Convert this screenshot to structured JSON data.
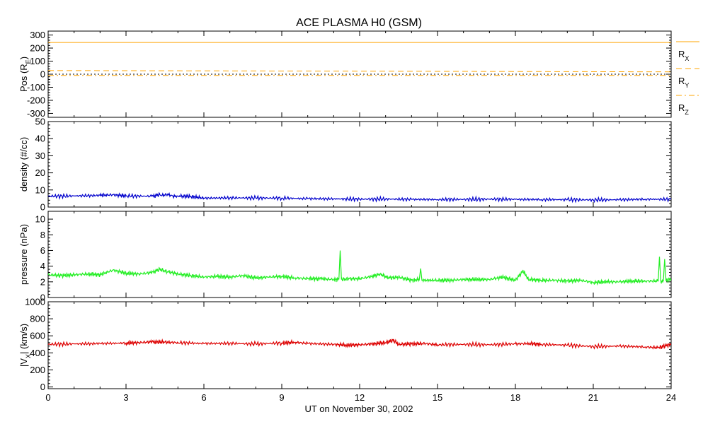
{
  "chart_data": {
    "type": "line",
    "title": "ACE PLASMA H0 (GSM)",
    "xlabel": "UT on November 30, 2002",
    "x_ticks": [
      0,
      3,
      6,
      9,
      12,
      15,
      18,
      21,
      24
    ],
    "xlim": [
      0,
      24
    ],
    "panels": [
      {
        "id": "position",
        "ylabel": "Pos (R",
        "ylabel_sub": "E",
        "ylabel_end": ")",
        "ylim": [
          -330,
          330
        ],
        "y_ticks": [
          300,
          200,
          100,
          0,
          -100,
          -200,
          -300
        ],
        "color": "#ffa500",
        "series": [
          {
            "name": "R",
            "sub": "X",
            "style": "solid",
            "color": "#ffa500",
            "x": [
              0,
              24
            ],
            "y": [
              243,
              243
            ]
          },
          {
            "name": "R",
            "sub": "Y",
            "style": "dashed",
            "color": "#ffa500",
            "x": [
              0,
              24
            ],
            "y": [
              28,
              18
            ]
          },
          {
            "name": "R",
            "sub": "Z",
            "style": "dashdot",
            "color": "#ffa500",
            "x": [
              0,
              24
            ],
            "y": [
              -9,
              -9
            ]
          },
          {
            "name": "",
            "sub": "",
            "style": "dotted",
            "color": "#000000",
            "x": [
              0,
              24
            ],
            "y": [
              0,
              0
            ]
          }
        ]
      },
      {
        "id": "density",
        "ylabel": "density (#/cc)",
        "ylim": [
          0,
          50
        ],
        "y_ticks": [
          0,
          10,
          20,
          30,
          40,
          50
        ],
        "color": "#0000cc",
        "series": [
          {
            "name": "density",
            "x": [
              0,
              1,
              2,
              2.5,
              3,
              4,
              4.3,
              5,
              5.5,
              6,
              7,
              8,
              9,
              10,
              11,
              12,
              13,
              14,
              15,
              16,
              17,
              18,
              19,
              20,
              21,
              22,
              23,
              24
            ],
            "y": [
              6.3,
              6.5,
              6.8,
              7.2,
              6.5,
              6.3,
              7.3,
              6.5,
              6.2,
              5.2,
              5.4,
              5.3,
              5.2,
              4.9,
              4.8,
              4.6,
              4.7,
              4.5,
              4.4,
              4.5,
              4.6,
              4.5,
              4.4,
              4.3,
              4.2,
              4.3,
              4.6,
              4.5
            ]
          }
        ]
      },
      {
        "id": "pressure",
        "ylabel": "pressure (nPa)",
        "ylim": [
          0,
          11
        ],
        "y_ticks": [
          0,
          2,
          4,
          6,
          8,
          10
        ],
        "color": "#22ee22",
        "series": [
          {
            "name": "pressure",
            "x": [
              0,
              0.5,
              1,
              1.5,
              2,
              2.5,
              3,
              3.5,
              4,
              4.3,
              4.6,
              5,
              5.5,
              6,
              6.5,
              7,
              7.5,
              8,
              8.5,
              9,
              9.5,
              10,
              10.5,
              11,
              11.2,
              11.25,
              11.3,
              11.6,
              12,
              12.5,
              12.8,
              13.1,
              13.5,
              14,
              14.3,
              14.35,
              14.4,
              15,
              15.5,
              16,
              16.5,
              17,
              17.5,
              18,
              18.3,
              18.5,
              19,
              19.5,
              20,
              20.5,
              21,
              21.5,
              22,
              22.5,
              23,
              23.5,
              23.55,
              23.6,
              23.7,
              23.75,
              23.8,
              24
            ],
            "y": [
              2.9,
              2.8,
              2.9,
              3.0,
              2.9,
              3.5,
              3.1,
              3.0,
              3.2,
              3.6,
              3.3,
              3.0,
              2.8,
              2.6,
              2.7,
              2.6,
              2.8,
              2.5,
              2.6,
              2.7,
              2.5,
              2.4,
              2.4,
              2.3,
              2.3,
              6.0,
              2.3,
              2.4,
              2.4,
              2.7,
              3.0,
              2.5,
              2.6,
              2.2,
              2.3,
              3.7,
              2.2,
              2.2,
              2.2,
              2.3,
              2.3,
              2.3,
              2.6,
              2.2,
              3.4,
              2.3,
              2.2,
              2.2,
              2.1,
              2.2,
              1.9,
              2.0,
              2.0,
              2.1,
              2.1,
              2.1,
              5.2,
              2.1,
              2.1,
              4.9,
              2.2,
              2.3
            ]
          }
        ]
      },
      {
        "id": "velocity",
        "ylabel": "|V",
        "ylabel_sub": "X",
        "ylabel_end": "| (km/s)",
        "ylim": [
          -20,
          1000
        ],
        "y_ticks": [
          0,
          200,
          400,
          600,
          800,
          1000
        ],
        "color": "#dd0000",
        "series": [
          {
            "name": "vx",
            "x": [
              0,
              1,
              2,
              3,
              3.5,
              4,
              4.5,
              5,
              6,
              7,
              8,
              9,
              9.5,
              10,
              11,
              11.5,
              12,
              12.5,
              13,
              13.3,
              13.5,
              14,
              14.5,
              15,
              16,
              17,
              18,
              18.5,
              19,
              20,
              21,
              22,
              23,
              23.5,
              24
            ],
            "y": [
              500,
              505,
              510,
              515,
              520,
              530,
              525,
              520,
              510,
              512,
              505,
              515,
              525,
              510,
              500,
              490,
              495,
              505,
              520,
              550,
              500,
              505,
              510,
              495,
              500,
              495,
              505,
              510,
              500,
              490,
              475,
              480,
              470,
              460,
              500
            ]
          }
        ]
      }
    ]
  }
}
